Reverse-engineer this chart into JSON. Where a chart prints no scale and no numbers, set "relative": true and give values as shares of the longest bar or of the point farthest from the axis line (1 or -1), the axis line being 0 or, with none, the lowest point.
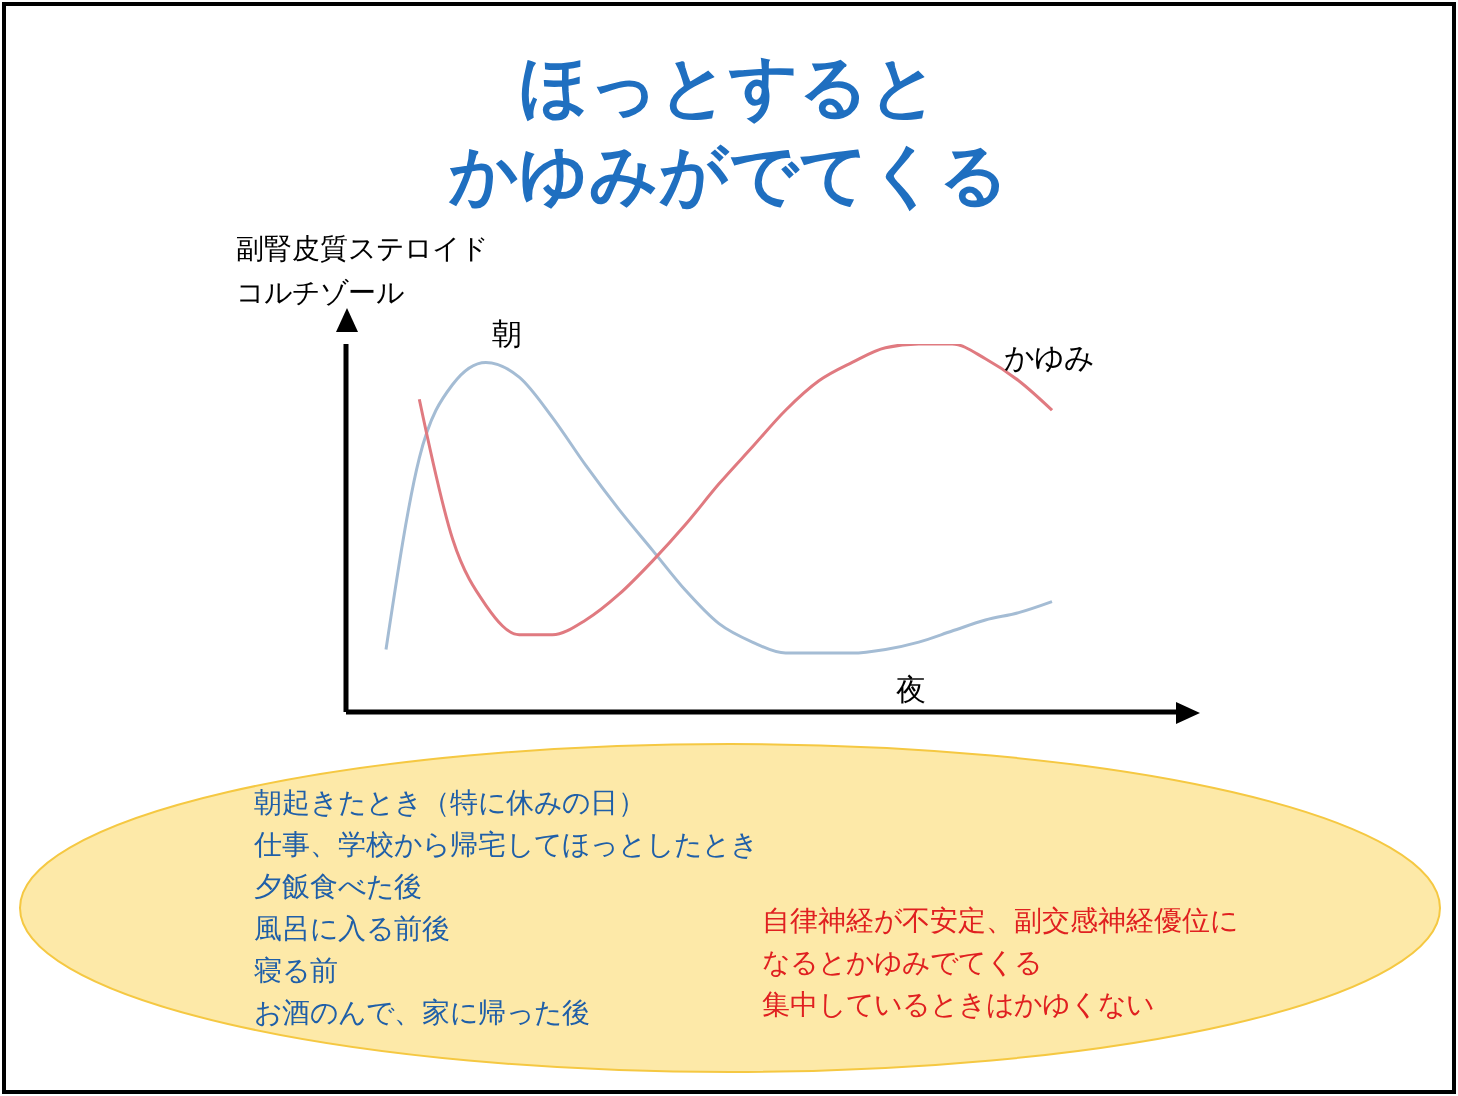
{
  "chart_data": {
    "type": "line",
    "title": "ほっとすると",
    "subtitle": "かゆみがでてくる",
    "ylabel": "副腎皮質ステロイドコルチゾール",
    "relative": true,
    "legend": false,
    "grid": false,
    "marker": "none",
    "categories": [
      null,
      null,
      null,
      null,
      null,
      null,
      null,
      null,
      null,
      null,
      null,
      null,
      null,
      null,
      null,
      null,
      null,
      null,
      null,
      null,
      null
    ],
    "series": [
      {
        "color": "#a4bcd4",
        "values": [
          0.17,
          0.69,
          0.89,
          0.95,
          0.91,
          0.8,
          0.67,
          0.55,
          0.44,
          0.33,
          0.24,
          0.19,
          0.16,
          0.16,
          0.16,
          0.17,
          0.19,
          0.22,
          0.25,
          0.27,
          0.3
        ]
      },
      {
        "name": "かゆみ",
        "color": "#e07a80",
        "values": [
          null,
          0.85,
          0.47,
          0.29,
          0.21,
          0.21,
          0.25,
          0.32,
          0.41,
          0.51,
          0.62,
          0.72,
          0.82,
          0.9,
          0.95,
          0.99,
          1,
          1,
          0.96,
          0.9,
          0.82
        ]
      }
    ],
    "annotations": [
      "朝",
      "夜",
      "朝起きたとき（特に休みの日）",
      "仕事、学校から帰宅してほっとしたとき",
      "夕飯食べた後",
      "風呂に入る前後",
      "寝る前",
      "お酒のんで、家に帰った後",
      "自律神経が不安定、副交感神経優位になるとかゆみでてくる",
      "集中しているときはかゆくない"
    ]
  }
}
